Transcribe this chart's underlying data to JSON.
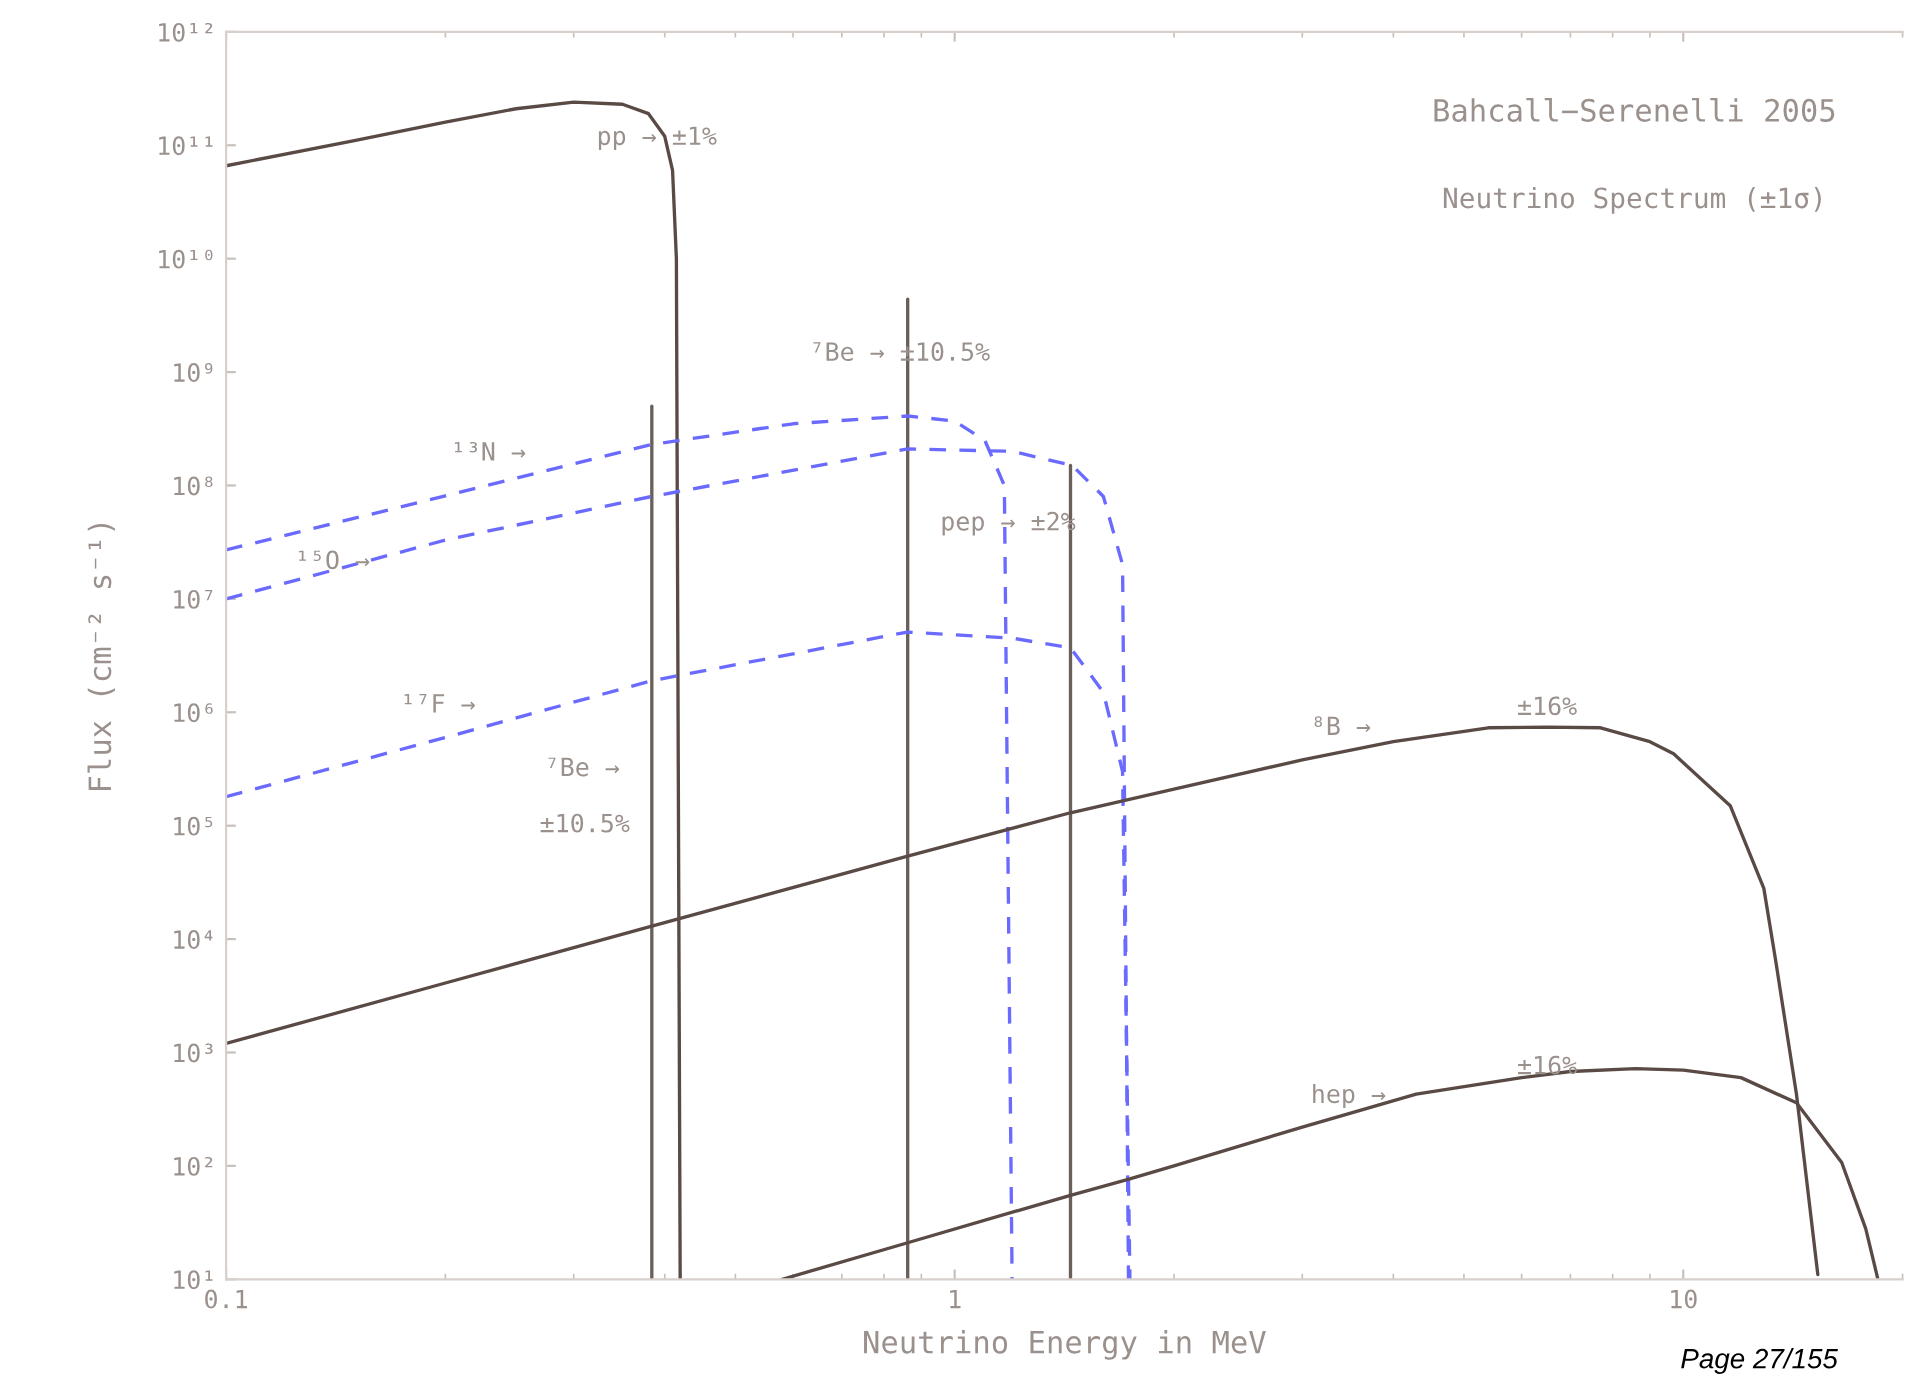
{
  "chart_data": {
    "type": "line",
    "title": "Bahcall−Serenelli 2005",
    "subtitle": "Neutrino Spectrum (±1σ)",
    "xlabel": "Neutrino Energy in MeV",
    "ylabel": "Flux (cm⁻² s⁻¹)",
    "log": "xy",
    "xlim": [
      0.1,
      20
    ],
    "xticks": [
      0.1,
      1,
      10
    ],
    "ylim": [
      10,
      1000000000000.0
    ],
    "yticks": [
      {
        "value": 10,
        "label": "10¹"
      },
      {
        "value": 100,
        "label": "10²"
      },
      {
        "value": 1000,
        "label": "10³"
      },
      {
        "value": 10000,
        "label": "10⁴"
      },
      {
        "value": 100000,
        "label": "10⁵"
      },
      {
        "value": 1000000,
        "label": "10⁶"
      },
      {
        "value": 10000000,
        "label": "10⁷"
      },
      {
        "value": 100000000,
        "label": "10⁸"
      },
      {
        "value": 1000000000,
        "label": "10⁹"
      },
      {
        "value": 10000000000,
        "label": "10¹⁰"
      },
      {
        "value": 100000000000,
        "label": "10¹¹"
      },
      {
        "value": 1000000000000,
        "label": "10¹²"
      }
    ],
    "grid": false,
    "marker": "none",
    "series": [
      {
        "color": "#5a4a45",
        "line_style": "solid",
        "x": [
          0.1,
          0.15,
          0.2,
          0.25,
          0.3,
          0.35,
          0.38,
          0.4,
          0.41,
          0.415,
          0.42
        ],
        "values": [
          66000000000.0,
          110000000000.0,
          160000000000.0,
          210000000000.0,
          240000000000.0,
          230000000000.0,
          190000000000.0,
          120000000000.0,
          60000000000.0,
          10000000000.0,
          10
        ]
      },
      {
        "color": "#6b5f5a",
        "line_style": "solid",
        "x": [
          0.384,
          0.384
        ],
        "values": [
          10,
          500000000.0
        ]
      },
      {
        "color": "#6b5f5a",
        "line_style": "solid",
        "x": [
          0.862,
          0.862
        ],
        "values": [
          10,
          4400000000.0
        ]
      },
      {
        "color": "#6b5f5a",
        "line_style": "solid",
        "x": [
          1.442,
          1.442
        ],
        "values": [
          10,
          150000000.0
        ]
      },
      {
        "color": "#6a6aff",
        "line_style": "dashed",
        "x": [
          0.1,
          0.2,
          0.384,
          0.6,
          0.862,
          1.0,
          1.1,
          1.17,
          1.199
        ],
        "values": [
          27000000.0,
          81000000.0,
          230000000.0,
          350000000.0,
          410000000.0,
          370000000.0,
          250000000.0,
          100000000.0,
          10
        ]
      },
      {
        "color": "#6a6aff",
        "line_style": "dashed",
        "x": [
          0.1,
          0.2,
          0.384,
          0.862,
          1.2,
          1.45,
          1.6,
          1.7,
          1.732
        ],
        "values": [
          10000000.0,
          33000000.0,
          80000000.0,
          210000000.0,
          200000000.0,
          150000000.0,
          80000000.0,
          20000000.0,
          10
        ]
      },
      {
        "color": "#6a6aff",
        "line_style": "dashed",
        "x": [
          0.1,
          0.2,
          0.384,
          0.862,
          1.2,
          1.442,
          1.6,
          1.7,
          1.74
        ],
        "values": [
          180000.0,
          600000.0,
          1900000.0,
          5100000.0,
          4500000.0,
          3700000.0,
          1500000.0,
          300000.0,
          10
        ]
      },
      {
        "color": "#5a4a45",
        "line_style": "solid",
        "x": [
          0.1,
          0.2,
          0.384,
          0.862,
          1.442,
          2,
          3,
          4,
          5.4,
          6.5,
          7.7,
          9,
          9.7,
          11.6,
          12.9,
          13.4,
          14.3,
          15.3
        ],
        "values": [
          1200.0,
          4100.0,
          13000.0,
          54000.0,
          130000.0,
          210000.0,
          380000.0,
          550000.0,
          730000.0,
          740000.0,
          730000.0,
          550000.0,
          430000.0,
          150000.0,
          28000.0,
          6300.0,
          430,
          11
        ]
      },
      {
        "color": "#5a4a45",
        "line_style": "solid",
        "x": [
          0.58,
          0.862,
          1.442,
          1.73,
          2,
          3,
          4.3,
          6,
          7,
          8.6,
          10,
          12,
          14.3,
          16.5,
          17.8,
          18.5
        ],
        "values": [
          10,
          21,
          55,
          76,
          100,
          220,
          430,
          600,
          680,
          720,
          700,
          600,
          360,
          107,
          28,
          10
        ]
      }
    ],
    "annotations": [
      "pp → ±1%",
      "⁷Be → ±10.5%",
      "pep → ±2%",
      "¹³N →",
      "¹⁵O →",
      "¹⁷F →",
      "⁷Be →",
      "±10.5%",
      "⁸B →",
      "±16%",
      "hep →",
      "±16%",
      "Page 27/155"
    ]
  }
}
